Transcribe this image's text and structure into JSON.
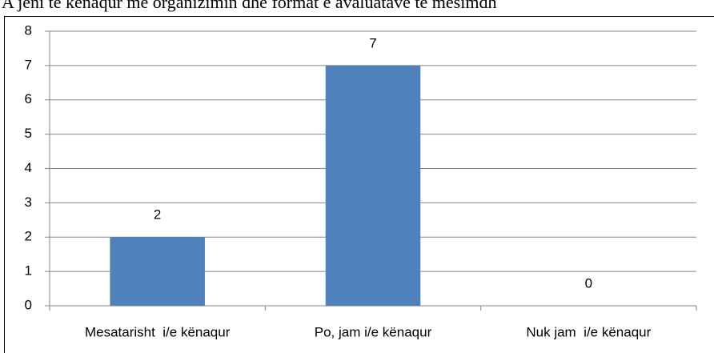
{
  "chart_data": {
    "type": "bar",
    "title": "A jeni të kënaqur me organizimin dhe format e avaluatave të mësimdh",
    "categories": [
      "Mesatarisht  i/e kënaqur",
      "Po, jam i/e kënaqur",
      "Nuk jam  i/e kënaqur"
    ],
    "values": [
      2,
      7,
      0
    ],
    "color": "#4f81bd",
    "ylim": [
      0,
      8
    ],
    "yticks": [
      0,
      1,
      2,
      3,
      4,
      5,
      6,
      7,
      8
    ],
    "grid": true
  }
}
